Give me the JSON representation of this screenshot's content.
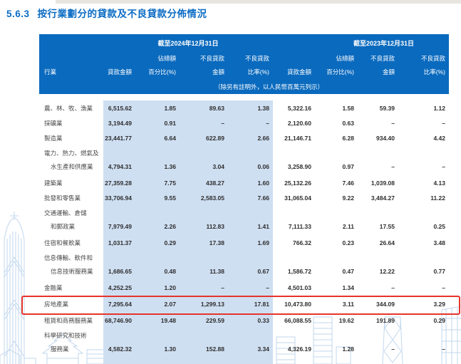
{
  "page": {
    "title_number": "5.6.3",
    "title_text": "按行業劃分的貸款及不良貸款分佈情況"
  },
  "colors": {
    "header_blue": "#0a6abe",
    "band_blue": "#cfdff2",
    "title_blue": "#0b6cc4",
    "highlight_red": "#e5352b",
    "watermark_blue": "#c2d7ee"
  },
  "table": {
    "industry_header": "行業",
    "period_2024": "截至2024年12月31日",
    "period_2023": "截至2023年12月31日",
    "col_loan_l1": "",
    "col_loan_l2": "貸款金額",
    "col_pct_l1": "佔總額",
    "col_pct_l2": "百分比(%)",
    "col_npl_l1": "不良貸款",
    "col_npl_l2": "金額",
    "col_ratio_l1": "不良貸款",
    "col_ratio_l2": "比率(%)",
    "note": "（除另有註明外，以人民幣百萬元列示）",
    "rows": [
      {
        "name_lines": [
          "農、林、牧、漁業"
        ],
        "values_2024": [
          "6,515.62",
          "1.85",
          "89.63",
          "1.38"
        ],
        "values_2023": [
          "5,322.16",
          "1.58",
          "59.39",
          "1.12"
        ],
        "highlighted": false
      },
      {
        "name_lines": [
          "採礦業"
        ],
        "values_2024": [
          "3,194.49",
          "0.91",
          "–",
          "–"
        ],
        "values_2023": [
          "2,120.60",
          "0.63",
          "–",
          "–"
        ],
        "highlighted": false
      },
      {
        "name_lines": [
          "製造業"
        ],
        "values_2024": [
          "23,441.77",
          "6.64",
          "622.89",
          "2.66"
        ],
        "values_2023": [
          "21,146.71",
          "6.28",
          "934.40",
          "4.42"
        ],
        "highlighted": false
      },
      {
        "name_lines": [
          "電力、熱力、燃氣及",
          "水生產和供應業"
        ],
        "values_2024": [
          "4,794.31",
          "1.36",
          "3.04",
          "0.06"
        ],
        "values_2023": [
          "3,258.90",
          "0.97",
          "–",
          "–"
        ],
        "highlighted": false
      },
      {
        "name_lines": [
          "建築業"
        ],
        "values_2024": [
          "27,359.28",
          "7.75",
          "438.27",
          "1.60"
        ],
        "values_2023": [
          "25,132.26",
          "7.46",
          "1,039.08",
          "4.13"
        ],
        "highlighted": false
      },
      {
        "name_lines": [
          "批發和零售業"
        ],
        "values_2024": [
          "33,706.94",
          "9.55",
          "2,583.05",
          "7.66"
        ],
        "values_2023": [
          "31,065.04",
          "9.22",
          "3,484.27",
          "11.22"
        ],
        "highlighted": false
      },
      {
        "name_lines": [
          "交通運輸、倉儲",
          "和郵政業"
        ],
        "values_2024": [
          "7,979.49",
          "2.26",
          "112.83",
          "1.41"
        ],
        "values_2023": [
          "7,111.33",
          "2.11",
          "17.55",
          "0.25"
        ],
        "highlighted": false
      },
      {
        "name_lines": [
          "住宿和餐飲業"
        ],
        "values_2024": [
          "1,031.37",
          "0.29",
          "17.38",
          "1.69"
        ],
        "values_2023": [
          "766.32",
          "0.23",
          "26.64",
          "3.48"
        ],
        "highlighted": false
      },
      {
        "name_lines": [
          "信息傳輸、軟件和",
          "信息技術服務業"
        ],
        "values_2024": [
          "1,686.65",
          "0.48",
          "11.38",
          "0.67"
        ],
        "values_2023": [
          "1,586.72",
          "0.47",
          "12.22",
          "0.77"
        ],
        "highlighted": false
      },
      {
        "name_lines": [
          "金融業"
        ],
        "values_2024": [
          "4,252.25",
          "1.20",
          "–",
          "–"
        ],
        "values_2023": [
          "4,501.03",
          "1.34",
          "–",
          "–"
        ],
        "highlighted": false
      },
      {
        "name_lines": [
          "房地產業"
        ],
        "values_2024": [
          "7,295.64",
          "2.07",
          "1,299.13",
          "17.81"
        ],
        "values_2023": [
          "10,473.80",
          "3.11",
          "344.09",
          "3.29"
        ],
        "highlighted": true
      },
      {
        "name_lines": [
          "租賃和商務服務業"
        ],
        "values_2024": [
          "68,746.90",
          "19.48",
          "229.59",
          "0.33"
        ],
        "values_2023": [
          "66,088.55",
          "19.62",
          "191.89",
          "0.29"
        ],
        "highlighted": false
      },
      {
        "name_lines": [
          "科學研究和技術",
          "服務業"
        ],
        "values_2024": [
          "4,582.32",
          "1.30",
          "152.88",
          "3.34"
        ],
        "values_2023": [
          "4,326.19",
          "1.28",
          "–",
          "–"
        ],
        "highlighted": false
      }
    ]
  }
}
